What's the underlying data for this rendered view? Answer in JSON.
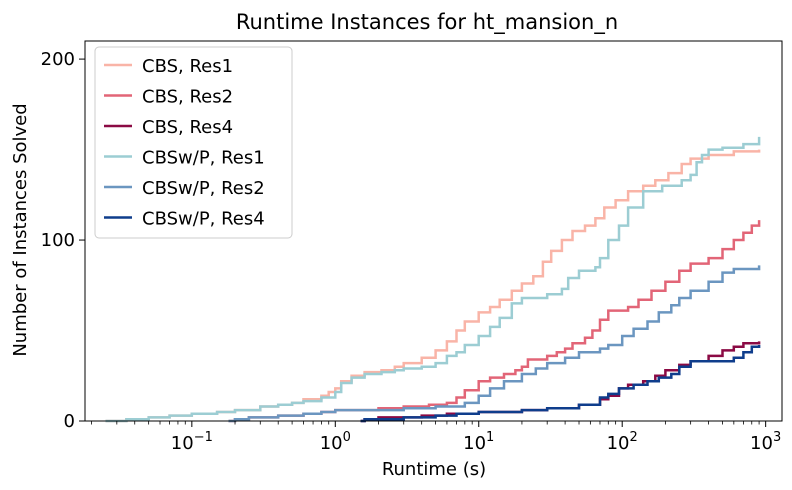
{
  "chart_data": {
    "type": "line",
    "step": true,
    "title": "Runtime Instances for ht_mansion_n",
    "xlabel": "Runtime (s)",
    "ylabel": "Number of Instances Solved",
    "xscale": "log",
    "xlim": [
      0.018,
      1300
    ],
    "ylim": [
      0,
      210
    ],
    "xticks": [
      {
        "value": 0.1,
        "base": "10",
        "exp": "−1"
      },
      {
        "value": 1,
        "base": "10",
        "exp": "0"
      },
      {
        "value": 10,
        "base": "10",
        "exp": "1"
      },
      {
        "value": 100,
        "base": "10",
        "exp": "2"
      },
      {
        "value": 1000,
        "base": "10",
        "exp": "3"
      }
    ],
    "yticks": [
      0,
      100,
      200
    ],
    "legend": "top-left",
    "series": [
      {
        "name": "CBS, Res1",
        "color": "#f9b4a7",
        "points": [
          [
            0.025,
            0
          ],
          [
            0.035,
            1
          ],
          [
            0.05,
            2
          ],
          [
            0.07,
            3
          ],
          [
            0.1,
            4
          ],
          [
            0.15,
            5
          ],
          [
            0.2,
            6
          ],
          [
            0.3,
            8
          ],
          [
            0.4,
            9
          ],
          [
            0.5,
            10
          ],
          [
            0.6,
            12
          ],
          [
            0.8,
            14
          ],
          [
            0.9,
            16
          ],
          [
            1,
            18
          ],
          [
            1.1,
            22
          ],
          [
            1.3,
            25
          ],
          [
            1.6,
            27
          ],
          [
            2.1,
            28
          ],
          [
            2.6,
            30
          ],
          [
            3,
            32
          ],
          [
            4,
            35
          ],
          [
            5,
            39
          ],
          [
            6,
            44
          ],
          [
            7,
            50
          ],
          [
            8,
            55
          ],
          [
            10,
            60
          ],
          [
            12,
            63
          ],
          [
            14,
            67
          ],
          [
            17,
            72
          ],
          [
            20,
            76
          ],
          [
            24,
            80
          ],
          [
            28,
            88
          ],
          [
            32,
            94
          ],
          [
            38,
            100
          ],
          [
            45,
            105
          ],
          [
            55,
            108
          ],
          [
            65,
            112
          ],
          [
            75,
            118
          ],
          [
            90,
            122
          ],
          [
            110,
            127
          ],
          [
            140,
            130
          ],
          [
            170,
            133
          ],
          [
            210,
            137
          ],
          [
            260,
            142
          ],
          [
            300,
            145
          ],
          [
            400,
            147
          ],
          [
            600,
            149
          ],
          [
            900,
            150
          ]
        ]
      },
      {
        "name": "CBS, Res2",
        "color": "#e26577",
        "points": [
          [
            0.18,
            0
          ],
          [
            0.2,
            1
          ],
          [
            0.25,
            2
          ],
          [
            0.4,
            3
          ],
          [
            0.6,
            4
          ],
          [
            0.8,
            5
          ],
          [
            1,
            6
          ],
          [
            2,
            7
          ],
          [
            3,
            8
          ],
          [
            4.5,
            9
          ],
          [
            6,
            10
          ],
          [
            7,
            13
          ],
          [
            8,
            17
          ],
          [
            10,
            22
          ],
          [
            12,
            24
          ],
          [
            15,
            26
          ],
          [
            18,
            28
          ],
          [
            20,
            30
          ],
          [
            22,
            34
          ],
          [
            30,
            36
          ],
          [
            35,
            38
          ],
          [
            40,
            40
          ],
          [
            45,
            43
          ],
          [
            55,
            46
          ],
          [
            62,
            50
          ],
          [
            70,
            56
          ],
          [
            80,
            61
          ],
          [
            110,
            63
          ],
          [
            130,
            67
          ],
          [
            160,
            72
          ],
          [
            200,
            77
          ],
          [
            250,
            83
          ],
          [
            300,
            87
          ],
          [
            400,
            90
          ],
          [
            500,
            95
          ],
          [
            600,
            100
          ],
          [
            700,
            104
          ],
          [
            800,
            108
          ],
          [
            900,
            111
          ]
        ]
      },
      {
        "name": "CBS, Res4",
        "color": "#8b0a44",
        "points": [
          [
            1.5,
            0
          ],
          [
            1.6,
            1
          ],
          [
            2,
            2
          ],
          [
            4,
            3
          ],
          [
            6,
            4
          ],
          [
            10,
            5
          ],
          [
            20,
            6
          ],
          [
            30,
            7
          ],
          [
            50,
            9
          ],
          [
            70,
            12
          ],
          [
            80,
            14
          ],
          [
            95,
            18
          ],
          [
            110,
            20
          ],
          [
            140,
            22
          ],
          [
            170,
            25
          ],
          [
            200,
            28
          ],
          [
            250,
            31
          ],
          [
            300,
            33
          ],
          [
            400,
            36
          ],
          [
            500,
            39
          ],
          [
            600,
            41
          ],
          [
            700,
            43
          ],
          [
            900,
            44
          ]
        ]
      },
      {
        "name": "CBSw/P, Res1",
        "color": "#9ccdd3",
        "points": [
          [
            0.025,
            0
          ],
          [
            0.035,
            1
          ],
          [
            0.05,
            2
          ],
          [
            0.07,
            3
          ],
          [
            0.1,
            4
          ],
          [
            0.15,
            5
          ],
          [
            0.2,
            6
          ],
          [
            0.3,
            8
          ],
          [
            0.4,
            9
          ],
          [
            0.5,
            10
          ],
          [
            0.6,
            11
          ],
          [
            0.8,
            13
          ],
          [
            1,
            16
          ],
          [
            1.1,
            21
          ],
          [
            1.3,
            24
          ],
          [
            1.6,
            26
          ],
          [
            2.1,
            27
          ],
          [
            2.6,
            28
          ],
          [
            3,
            29
          ],
          [
            4,
            30
          ],
          [
            5,
            32
          ],
          [
            6,
            36
          ],
          [
            7,
            38
          ],
          [
            8,
            42
          ],
          [
            10,
            47
          ],
          [
            12,
            52
          ],
          [
            14,
            57
          ],
          [
            17,
            65
          ],
          [
            20,
            68
          ],
          [
            30,
            70
          ],
          [
            38,
            73
          ],
          [
            42,
            79
          ],
          [
            50,
            83
          ],
          [
            65,
            85
          ],
          [
            70,
            90
          ],
          [
            80,
            100
          ],
          [
            95,
            108
          ],
          [
            110,
            118
          ],
          [
            140,
            127
          ],
          [
            190,
            130
          ],
          [
            260,
            133
          ],
          [
            300,
            136
          ],
          [
            330,
            143
          ],
          [
            360,
            147
          ],
          [
            400,
            150
          ],
          [
            500,
            151
          ],
          [
            700,
            153
          ],
          [
            900,
            157
          ]
        ]
      },
      {
        "name": "CBSw/P, Res2",
        "color": "#6b96c0",
        "points": [
          [
            0.18,
            0
          ],
          [
            0.2,
            1
          ],
          [
            0.25,
            2
          ],
          [
            0.4,
            3
          ],
          [
            0.6,
            4
          ],
          [
            0.8,
            5
          ],
          [
            1,
            6
          ],
          [
            3,
            7
          ],
          [
            5,
            8
          ],
          [
            8,
            10
          ],
          [
            10,
            14
          ],
          [
            12,
            18
          ],
          [
            15,
            22
          ],
          [
            20,
            26
          ],
          [
            25,
            29
          ],
          [
            30,
            32
          ],
          [
            40,
            35
          ],
          [
            50,
            38
          ],
          [
            70,
            40
          ],
          [
            80,
            42
          ],
          [
            100,
            47
          ],
          [
            120,
            51
          ],
          [
            150,
            55
          ],
          [
            180,
            60
          ],
          [
            220,
            64
          ],
          [
            250,
            68
          ],
          [
            300,
            72
          ],
          [
            400,
            77
          ],
          [
            500,
            82
          ],
          [
            600,
            84
          ],
          [
            900,
            86
          ]
        ]
      },
      {
        "name": "CBSw/P, Res4",
        "color": "#0f3d8c",
        "points": [
          [
            1.5,
            0
          ],
          [
            1.6,
            1
          ],
          [
            3,
            2
          ],
          [
            5,
            3
          ],
          [
            7,
            4
          ],
          [
            10,
            5
          ],
          [
            20,
            6
          ],
          [
            30,
            7
          ],
          [
            50,
            9
          ],
          [
            70,
            13
          ],
          [
            80,
            15
          ],
          [
            95,
            18
          ],
          [
            120,
            20
          ],
          [
            150,
            22
          ],
          [
            180,
            24
          ],
          [
            220,
            26
          ],
          [
            250,
            30
          ],
          [
            300,
            33
          ],
          [
            600,
            35
          ],
          [
            700,
            38
          ],
          [
            800,
            41
          ],
          [
            900,
            42
          ]
        ]
      }
    ]
  }
}
